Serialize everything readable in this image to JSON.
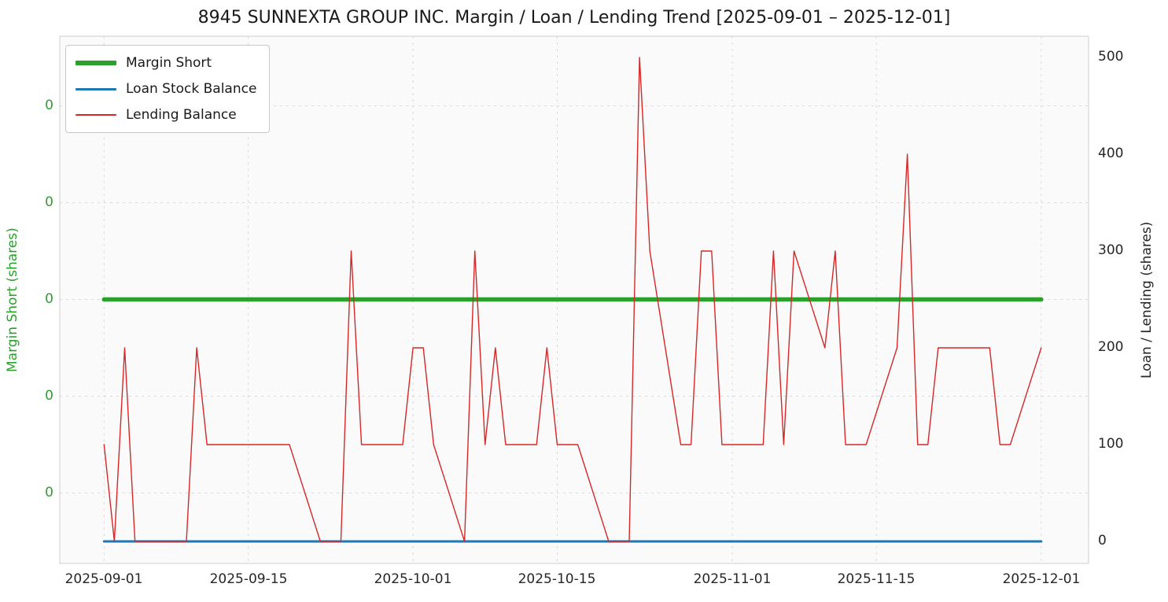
{
  "chart_data": {
    "type": "line",
    "title": "8945 SUNNEXTA GROUP INC. Margin / Loan / Lending Trend [2025-09-01 – 2025-12-01]",
    "x_tick_labels": [
      "2025-09-01",
      "2025-09-15",
      "2025-10-01",
      "2025-10-15",
      "2025-11-01",
      "2025-11-15",
      "2025-12-01"
    ],
    "left_axis": {
      "label": "Margin Short (shares)",
      "color": "#2ca02c",
      "tick_labels": [
        "0",
        "0",
        "0",
        "0",
        "0"
      ]
    },
    "right_axis": {
      "label": "Loan / Lending (shares)",
      "color": "#262626",
      "tick_labels": [
        "0",
        "100",
        "200",
        "300",
        "400",
        "500"
      ],
      "range": [
        0,
        500
      ]
    },
    "grid": true,
    "legend_position": "upper-left",
    "series": [
      {
        "name": "Margin Short",
        "axis": "left",
        "color": "#2ca02c",
        "line_width": 5.5,
        "x": [
          "2025-09-01",
          "2025-12-01"
        ],
        "values": [
          0,
          0
        ]
      },
      {
        "name": "Loan Stock Balance",
        "axis": "right",
        "color": "#1f77b4",
        "line_width": 3,
        "x": [
          "2025-09-01",
          "2025-12-01"
        ],
        "values": [
          0,
          0
        ]
      },
      {
        "name": "Lending Balance",
        "axis": "right",
        "color": "#d62728",
        "line_width": 1.4,
        "x": [
          "2025-09-01",
          "2025-09-02",
          "2025-09-03",
          "2025-09-04",
          "2025-09-05",
          "2025-09-08",
          "2025-09-09",
          "2025-09-10",
          "2025-09-11",
          "2025-09-12",
          "2025-09-15",
          "2025-09-16",
          "2025-09-17",
          "2025-09-18",
          "2025-09-19",
          "2025-09-22",
          "2025-09-23",
          "2025-09-24",
          "2025-09-25",
          "2025-09-26",
          "2025-09-29",
          "2025-09-30",
          "2025-10-01",
          "2025-10-02",
          "2025-10-03",
          "2025-10-06",
          "2025-10-07",
          "2025-10-08",
          "2025-10-09",
          "2025-10-10",
          "2025-10-13",
          "2025-10-14",
          "2025-10-15",
          "2025-10-16",
          "2025-10-17",
          "2025-10-20",
          "2025-10-21",
          "2025-10-22",
          "2025-10-23",
          "2025-10-24",
          "2025-10-27",
          "2025-10-28",
          "2025-10-29",
          "2025-10-30",
          "2025-10-31",
          "2025-11-03",
          "2025-11-04",
          "2025-11-05",
          "2025-11-06",
          "2025-11-07",
          "2025-11-10",
          "2025-11-11",
          "2025-11-12",
          "2025-11-13",
          "2025-11-14",
          "2025-11-17",
          "2025-11-18",
          "2025-11-19",
          "2025-11-20",
          "2025-11-21",
          "2025-11-24",
          "2025-11-25",
          "2025-11-26",
          "2025-11-27",
          "2025-11-28",
          "2025-12-01"
        ],
        "values": [
          100,
          0,
          200,
          0,
          0,
          0,
          0,
          200,
          100,
          100,
          100,
          100,
          100,
          100,
          100,
          0,
          0,
          0,
          300,
          100,
          100,
          100,
          200,
          200,
          100,
          0,
          300,
          100,
          200,
          100,
          100,
          200,
          100,
          100,
          100,
          0,
          0,
          0,
          500,
          300,
          100,
          100,
          300,
          300,
          100,
          100,
          100,
          300,
          100,
          300,
          200,
          300,
          100,
          100,
          100,
          200,
          400,
          100,
          100,
          200,
          200,
          200,
          200,
          100,
          100,
          200
        ]
      }
    ]
  }
}
